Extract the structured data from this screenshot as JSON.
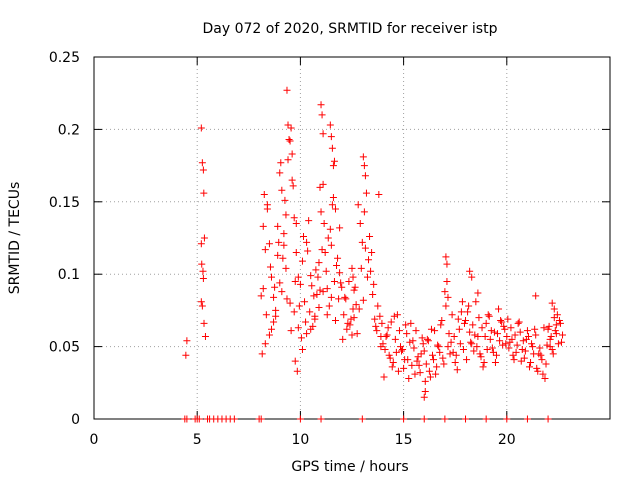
{
  "chart_data": {
    "type": "scatter",
    "title": "Day 072 of 2020, SRMTID for receiver istp",
    "xlabel": "GPS time / hours",
    "ylabel": "SRMTID / TECUs",
    "xlim": [
      0,
      25
    ],
    "ylim": [
      0,
      0.25
    ],
    "xticks": [
      0,
      5,
      10,
      15,
      20
    ],
    "xtick_labels": [
      "0",
      "5",
      "10",
      "15",
      "20"
    ],
    "yticks": [
      0,
      0.05,
      0.1,
      0.15,
      0.2,
      0.25
    ],
    "ytick_labels": [
      "0",
      "0.05",
      "0.1",
      "0.15",
      "0.2",
      "0.25"
    ],
    "grid": true,
    "marker": "+",
    "series": [
      {
        "name": "SRMTID",
        "color": "#ff0000",
        "x": [
          4.45,
          4.5,
          5.2,
          5.25,
          5.3,
          5.32,
          5.35,
          5.2,
          5.22,
          5.28,
          5.3,
          5.2,
          5.25,
          5.33,
          5.4,
          8.1,
          8.2,
          8.3,
          8.25,
          8.4,
          8.5,
          8.6,
          8.7,
          8.8,
          8.9,
          9.0,
          9.1,
          9.2,
          9.3,
          9.4,
          9.5,
          9.6,
          9.7,
          9.8,
          9.9,
          8.15,
          8.35,
          8.55,
          8.75,
          8.95,
          9.15,
          9.35,
          9.55,
          9.75,
          9.95,
          8.2,
          8.4,
          8.6,
          8.8,
          9.0,
          9.2,
          9.4,
          9.6,
          9.8,
          8.3,
          8.5,
          8.7,
          8.9,
          9.1,
          9.3,
          9.5,
          9.7,
          9.9,
          9.35,
          9.45,
          9.55,
          9.65,
          9.25,
          9.05,
          9.75,
          9.85,
          10.0,
          10.1,
          10.2,
          10.3,
          10.4,
          10.5,
          10.6,
          10.7,
          10.8,
          10.9,
          11.0,
          11.1,
          11.2,
          11.3,
          11.4,
          11.5,
          11.6,
          11.7,
          11.8,
          11.9,
          10.05,
          10.25,
          10.45,
          10.65,
          10.85,
          11.05,
          11.25,
          11.45,
          11.65,
          11.85,
          10.15,
          10.35,
          10.55,
          10.75,
          10.95,
          11.15,
          11.35,
          11.55,
          11.75,
          11.95,
          10.1,
          10.3,
          10.5,
          10.7,
          10.9,
          11.1,
          11.3,
          11.5,
          11.7,
          11.9,
          11.0,
          11.05,
          11.1,
          10.95,
          11.45,
          11.5,
          11.55,
          11.6,
          11.65,
          12.0,
          12.1,
          12.2,
          12.3,
          12.4,
          12.5,
          12.6,
          12.7,
          12.8,
          12.9,
          13.0,
          13.1,
          13.2,
          13.3,
          13.4,
          13.5,
          13.6,
          13.7,
          13.8,
          13.9,
          12.05,
          12.25,
          12.45,
          12.65,
          12.85,
          13.05,
          13.25,
          13.45,
          13.65,
          13.85,
          12.15,
          12.35,
          12.55,
          12.75,
          12.95,
          13.15,
          13.35,
          13.55,
          13.75,
          13.95,
          13.05,
          13.1,
          13.15,
          12.5,
          12.55,
          12.6,
          13.9,
          14.0,
          14.1,
          14.2,
          14.3,
          14.4,
          14.5,
          14.6,
          14.7,
          14.8,
          14.9,
          15.0,
          15.1,
          15.2,
          15.3,
          15.4,
          15.5,
          15.6,
          15.7,
          15.8,
          15.9,
          14.05,
          14.25,
          14.45,
          14.65,
          14.85,
          15.05,
          15.25,
          15.45,
          15.65,
          15.85,
          14.15,
          14.35,
          14.55,
          14.75,
          14.95,
          15.15,
          15.35,
          15.55,
          15.75,
          15.95,
          16.0,
          16.1,
          16.2,
          16.3,
          16.4,
          16.5,
          16.6,
          16.7,
          16.8,
          16.9,
          17.0,
          17.1,
          17.2,
          17.3,
          17.4,
          17.5,
          17.6,
          17.7,
          17.8,
          17.9,
          16.05,
          16.25,
          16.45,
          16.65,
          16.85,
          17.05,
          17.25,
          17.45,
          17.65,
          17.85,
          16.15,
          16.35,
          16.55,
          16.75,
          16.95,
          17.15,
          17.35,
          17.55,
          17.75,
          17.95,
          17.05,
          17.1,
          17.15,
          16.0,
          16.05,
          18.0,
          18.1,
          18.2,
          18.3,
          18.4,
          18.5,
          18.6,
          18.7,
          18.8,
          18.9,
          19.0,
          19.1,
          19.2,
          19.3,
          19.4,
          19.5,
          19.6,
          19.7,
          19.8,
          19.9,
          18.05,
          18.25,
          18.45,
          18.65,
          18.85,
          19.05,
          19.25,
          19.45,
          19.65,
          19.85,
          18.15,
          18.35,
          18.55,
          18.75,
          18.95,
          19.15,
          19.35,
          19.55,
          19.75,
          19.95,
          18.2,
          18.3,
          18.6,
          20.0,
          20.1,
          20.2,
          20.3,
          20.4,
          20.5,
          20.6,
          20.7,
          20.8,
          20.9,
          21.0,
          21.1,
          21.2,
          21.3,
          21.4,
          21.5,
          21.6,
          21.7,
          21.8,
          21.9,
          20.05,
          20.25,
          20.45,
          20.65,
          20.85,
          21.05,
          21.25,
          21.45,
          21.65,
          21.85,
          20.15,
          20.35,
          20.55,
          20.75,
          20.95,
          21.15,
          21.35,
          21.55,
          21.75,
          21.95,
          22.0,
          22.1,
          22.2,
          22.3,
          22.4,
          22.5,
          22.6,
          22.7,
          22.05,
          22.25,
          22.45,
          22.65,
          22.15,
          22.35,
          22.55,
          22.2,
          22.3,
          22.4,
          21.4,
          22.1,
          4.4,
          4.5,
          4.9,
          5.0,
          5.1,
          5.5,
          5.6,
          5.8,
          6.0,
          6.2,
          6.4,
          6.6,
          6.8,
          8.0,
          8.1,
          10.0,
          11.0,
          13.0,
          15.0,
          16.0,
          17.0,
          18.0,
          19.0,
          20.0,
          21.0,
          22.0
        ],
        "y": [
          0.044,
          0.054,
          0.201,
          0.177,
          0.172,
          0.156,
          0.125,
          0.121,
          0.107,
          0.102,
          0.097,
          0.081,
          0.078,
          0.066,
          0.057,
          0.085,
          0.09,
          0.117,
          0.155,
          0.145,
          0.121,
          0.098,
          0.084,
          0.075,
          0.133,
          0.17,
          0.158,
          0.12,
          0.141,
          0.203,
          0.192,
          0.165,
          0.139,
          0.115,
          0.098,
          0.045,
          0.072,
          0.105,
          0.091,
          0.122,
          0.111,
          0.083,
          0.061,
          0.095,
          0.078,
          0.133,
          0.148,
          0.062,
          0.071,
          0.094,
          0.128,
          0.179,
          0.183,
          0.135,
          0.052,
          0.058,
          0.067,
          0.113,
          0.088,
          0.104,
          0.08,
          0.074,
          0.063,
          0.227,
          0.193,
          0.201,
          0.161,
          0.151,
          0.177,
          0.04,
          0.033,
          0.093,
          0.109,
          0.081,
          0.122,
          0.137,
          0.099,
          0.064,
          0.071,
          0.086,
          0.108,
          0.143,
          0.162,
          0.115,
          0.09,
          0.078,
          0.12,
          0.153,
          0.145,
          0.111,
          0.132,
          0.056,
          0.067,
          0.074,
          0.085,
          0.098,
          0.117,
          0.102,
          0.131,
          0.095,
          0.083,
          0.126,
          0.116,
          0.092,
          0.103,
          0.089,
          0.135,
          0.125,
          0.148,
          0.106,
          0.094,
          0.048,
          0.059,
          0.062,
          0.069,
          0.077,
          0.088,
          0.072,
          0.084,
          0.068,
          0.101,
          0.217,
          0.21,
          0.197,
          0.16,
          0.203,
          0.195,
          0.187,
          0.175,
          0.178,
          0.091,
          0.072,
          0.083,
          0.066,
          0.065,
          0.058,
          0.07,
          0.079,
          0.148,
          0.135,
          0.122,
          0.143,
          0.156,
          0.11,
          0.102,
          0.086,
          0.069,
          0.061,
          0.155,
          0.057,
          0.055,
          0.062,
          0.069,
          0.091,
          0.076,
          0.082,
          0.098,
          0.115,
          0.064,
          0.071,
          0.084,
          0.095,
          0.076,
          0.059,
          0.104,
          0.118,
          0.126,
          0.093,
          0.078,
          0.066,
          0.181,
          0.175,
          0.168,
          0.104,
          0.098,
          0.089,
          0.05,
          0.052,
          0.048,
          0.058,
          0.044,
          0.067,
          0.039,
          0.055,
          0.072,
          0.061,
          0.047,
          0.035,
          0.065,
          0.041,
          0.053,
          0.037,
          0.049,
          0.061,
          0.043,
          0.032,
          0.056,
          0.029,
          0.063,
          0.036,
          0.046,
          0.05,
          0.041,
          0.028,
          0.054,
          0.04,
          0.045,
          0.057,
          0.042,
          0.071,
          0.033,
          0.048,
          0.059,
          0.066,
          0.031,
          0.037,
          0.052,
          0.047,
          0.038,
          0.054,
          0.029,
          0.044,
          0.061,
          0.036,
          0.05,
          0.065,
          0.042,
          0.088,
          0.107,
          0.059,
          0.053,
          0.046,
          0.039,
          0.034,
          0.062,
          0.074,
          0.048,
          0.026,
          0.033,
          0.041,
          0.051,
          0.068,
          0.078,
          0.045,
          0.057,
          0.069,
          0.081,
          0.055,
          0.062,
          0.031,
          0.046,
          0.038,
          0.05,
          0.072,
          0.044,
          0.052,
          0.066,
          0.112,
          0.095,
          0.084,
          0.015,
          0.019,
          0.068,
          0.074,
          0.06,
          0.052,
          0.047,
          0.081,
          0.057,
          0.045,
          0.063,
          0.039,
          0.066,
          0.072,
          0.055,
          0.049,
          0.06,
          0.044,
          0.076,
          0.068,
          0.051,
          0.062,
          0.041,
          0.053,
          0.058,
          0.07,
          0.036,
          0.048,
          0.061,
          0.039,
          0.054,
          0.064,
          0.078,
          0.065,
          0.05,
          0.043,
          0.057,
          0.071,
          0.046,
          0.059,
          0.067,
          0.052,
          0.102,
          0.098,
          0.087,
          0.057,
          0.049,
          0.063,
          0.044,
          0.058,
          0.051,
          0.067,
          0.04,
          0.054,
          0.047,
          0.061,
          0.036,
          0.052,
          0.045,
          0.058,
          0.033,
          0.049,
          0.041,
          0.063,
          0.038,
          0.069,
          0.055,
          0.046,
          0.06,
          0.042,
          0.057,
          0.05,
          0.035,
          0.044,
          0.028,
          0.053,
          0.041,
          0.066,
          0.048,
          0.055,
          0.039,
          0.062,
          0.045,
          0.031,
          0.051,
          0.062,
          0.055,
          0.048,
          0.07,
          0.059,
          0.052,
          0.066,
          0.058,
          0.064,
          0.045,
          0.072,
          0.053,
          0.057,
          0.061,
          0.068,
          0.08,
          0.076,
          0.065,
          0.085,
          0.05,
          0.0,
          0.0,
          0.0,
          0.0,
          0.0,
          0.0,
          0.0,
          0.0,
          0.0,
          0.0,
          0.0,
          0.0,
          0.0,
          0.0,
          0.0,
          0.0,
          0.0,
          0.0,
          0.0,
          0.0,
          0.0,
          0.0,
          0.0,
          0.0,
          0.0,
          0.0
        ]
      }
    ]
  }
}
